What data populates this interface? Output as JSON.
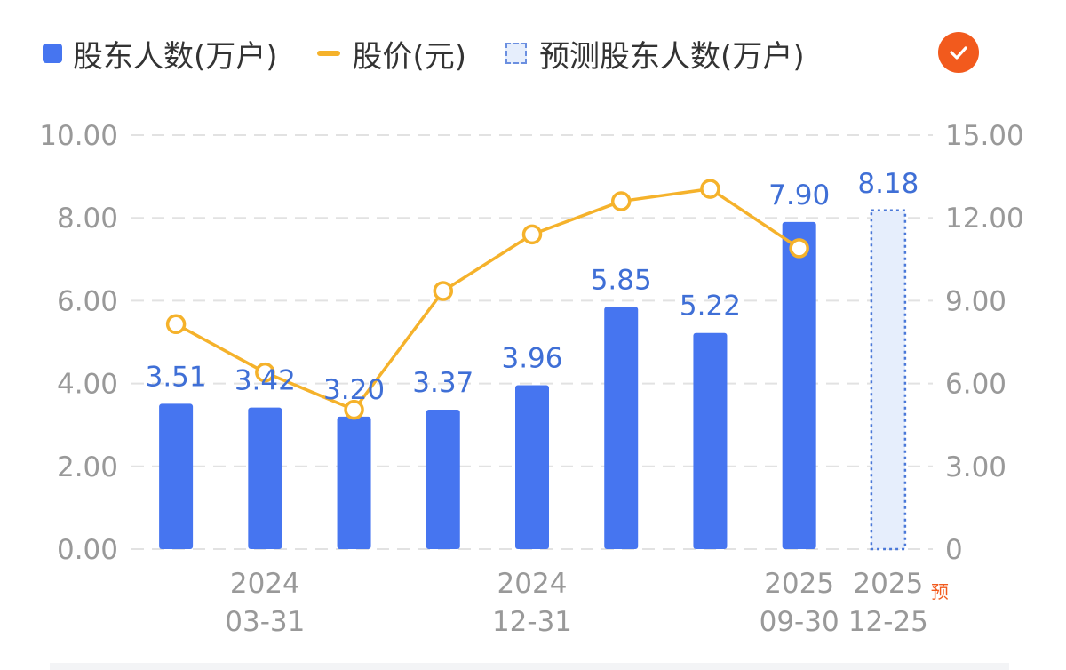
{
  "legend": {
    "bar_label": "股东人数(万户)",
    "line_label": "股价(元)",
    "pred_label": "预测股东人数(万户)",
    "toggle_icon": "check-icon"
  },
  "colors": {
    "bar": "#4675f0",
    "line": "#f5b22b",
    "pred_fill": "#e6eefc",
    "pred_border": "#4a78d8",
    "value_label": "#3f6fd6",
    "axis_text": "#999999",
    "grid": "#e2e2e2",
    "badge": "#f25a1d"
  },
  "chart_data": {
    "type": "bar",
    "grid": true,
    "legend_position": "top-left",
    "x_tick_labels": [
      {
        "index": 1,
        "year": "2024",
        "date": "03-31"
      },
      {
        "index": 4,
        "year": "2024",
        "date": "12-31"
      },
      {
        "index": 7,
        "year": "2025",
        "date": "09-30"
      },
      {
        "index": 8,
        "year": "2025",
        "date": "12-25"
      }
    ],
    "forecast_marker": "预",
    "y_left": {
      "range": [
        0,
        10
      ],
      "ticks": [
        "0.00",
        "2.00",
        "4.00",
        "6.00",
        "8.00",
        "10.00"
      ]
    },
    "y_right": {
      "range": [
        0,
        15
      ],
      "ticks": [
        "0",
        "3.00",
        "6.00",
        "9.00",
        "12.00",
        "15.00"
      ]
    },
    "series": [
      {
        "name": "股东人数(万户)",
        "type": "bar",
        "axis": "left",
        "values": [
          3.51,
          3.42,
          3.2,
          3.37,
          3.96,
          5.85,
          5.22,
          7.9,
          null
        ],
        "labels": [
          "3.51",
          "3.42",
          "3.20",
          "3.37",
          "3.96",
          "5.85",
          "5.22",
          "7.90",
          ""
        ]
      },
      {
        "name": "股价(元)",
        "type": "line",
        "axis": "right",
        "values": [
          8.15,
          6.4,
          5.05,
          9.35,
          11.4,
          12.6,
          13.05,
          10.9,
          null
        ]
      },
      {
        "name": "预测股东人数(万户)",
        "type": "bar-forecast",
        "axis": "left",
        "values": [
          null,
          null,
          null,
          null,
          null,
          null,
          null,
          null,
          8.18
        ],
        "labels": [
          "",
          "",
          "",
          "",
          "",
          "",
          "",
          "",
          "8.18"
        ]
      }
    ]
  }
}
